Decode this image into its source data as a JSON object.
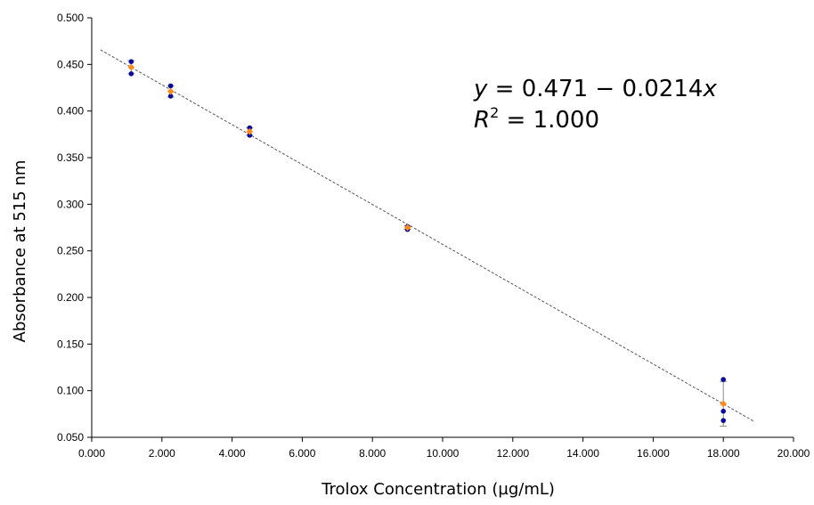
{
  "chart_data": {
    "type": "scatter",
    "title": "",
    "xlabel": "Trolox Concentration (µg/mL)",
    "ylabel": "Absorbance at 515 nm",
    "xlim": [
      0,
      20
    ],
    "ylim": [
      0.05,
      0.5
    ],
    "x_ticks": [
      "0.000",
      "2.000",
      "4.000",
      "6.000",
      "8.000",
      "10.000",
      "12.000",
      "14.000",
      "16.000",
      "18.000",
      "20.000"
    ],
    "y_ticks": [
      "0.050",
      "0.100",
      "0.150",
      "0.200",
      "0.250",
      "0.300",
      "0.350",
      "0.400",
      "0.450",
      "0.500"
    ],
    "x_tick_values": [
      0,
      2,
      4,
      6,
      8,
      10,
      12,
      14,
      16,
      18,
      20
    ],
    "y_tick_values": [
      0.05,
      0.1,
      0.15,
      0.2,
      0.25,
      0.3,
      0.35,
      0.4,
      0.45,
      0.5
    ],
    "grid": false,
    "legend": "none",
    "series": [
      {
        "color": "#0a0a9c",
        "marker": "circle",
        "x": [
          1.125,
          1.125,
          2.25,
          2.25,
          4.5,
          4.5,
          9.0,
          9.0,
          18.0,
          18.0,
          18.0
        ],
        "y": [
          0.453,
          0.44,
          0.427,
          0.416,
          0.382,
          0.374,
          0.276,
          0.273,
          0.112,
          0.078,
          0.068
        ]
      },
      {
        "color": "#ff8c1a",
        "marker": "diamond",
        "x": [
          1.125,
          2.25,
          4.5,
          9.0,
          18.0
        ],
        "y": [
          0.447,
          0.421,
          0.378,
          0.275,
          0.086
        ],
        "error": [
          0.007,
          0.006,
          0.004,
          0.002,
          0.024
        ]
      }
    ],
    "trendline": {
      "intercept": 0.471,
      "slope": -0.0214,
      "x_range": [
        0.25,
        18.9
      ],
      "color": "#555555",
      "style": "dashed"
    },
    "annotations": {
      "equation": {
        "y_var": "y",
        "eq_rest": " = 0.471 − 0.0214",
        "x_var": "x",
        "r_var": "R",
        "r_sup": "2",
        "r_rest": " = 1.000"
      }
    }
  }
}
